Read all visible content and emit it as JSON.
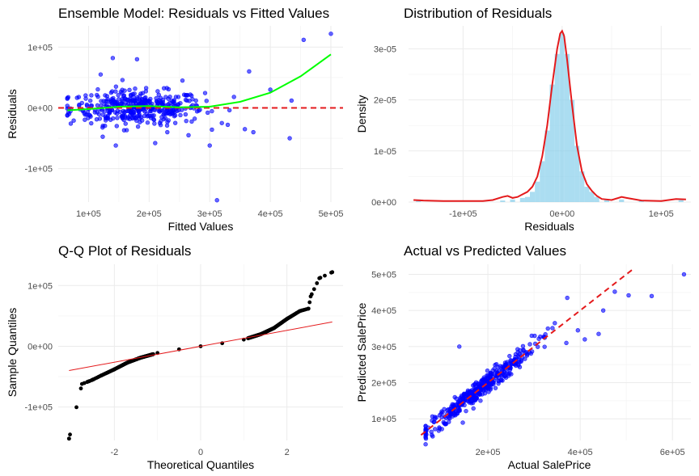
{
  "chart_data": [
    {
      "type": "scatter",
      "title": "Ensemble Model: Residuals vs Fitted Values",
      "xlabel": "Fitted Values",
      "ylabel": "Residuals",
      "xlim": [
        50000,
        520000
      ],
      "ylim": [
        -155000,
        135000
      ],
      "x_ticks": [
        {
          "value": 100000,
          "label": "1e+05"
        },
        {
          "value": 200000,
          "label": "2e+05"
        },
        {
          "value": 300000,
          "label": "3e+05"
        },
        {
          "value": 400000,
          "label": "4e+05"
        },
        {
          "value": 500000,
          "label": "5e+05"
        }
      ],
      "y_ticks": [
        {
          "value": -100000,
          "label": "-1e+05"
        },
        {
          "value": 0,
          "label": "0e+00"
        },
        {
          "value": 100000,
          "label": "1e+05"
        }
      ],
      "point_color": "#0000ff",
      "outliers": [
        {
          "x": 500000,
          "y": 122000
        },
        {
          "x": 455000,
          "y": 112000
        },
        {
          "x": 365000,
          "y": 60000
        },
        {
          "x": 140000,
          "y": 82000
        },
        {
          "x": 180000,
          "y": 80000
        },
        {
          "x": 120000,
          "y": 55000
        },
        {
          "x": 255000,
          "y": 45000
        },
        {
          "x": 400000,
          "y": 30000
        },
        {
          "x": 435000,
          "y": 12000
        },
        {
          "x": 312000,
          "y": -152000
        },
        {
          "x": 432000,
          "y": -50000
        },
        {
          "x": 300000,
          "y": -62000
        },
        {
          "x": 358000,
          "y": -35000
        },
        {
          "x": 145000,
          "y": -62000
        },
        {
          "x": 320000,
          "y": -25000
        },
        {
          "x": 372000,
          "y": -40000
        },
        {
          "x": 210000,
          "y": -58000
        },
        {
          "x": 265000,
          "y": -45000
        },
        {
          "x": 340000,
          "y": 18000
        },
        {
          "x": 230000,
          "y": -40000
        }
      ],
      "cluster": {
        "n": 420,
        "x_mean": 180000,
        "x_sd": 55000,
        "x_min": 65000,
        "x_max": 345000,
        "y_sd": 14000
      },
      "reference_line": {
        "y": 0,
        "color": "#e41a1c",
        "style": "dashed"
      },
      "smooth": {
        "color": "#00ff00",
        "points": [
          {
            "x": 65000,
            "y": -4000
          },
          {
            "x": 100000,
            "y": -2000
          },
          {
            "x": 150000,
            "y": 2000
          },
          {
            "x": 200000,
            "y": 3000
          },
          {
            "x": 250000,
            "y": 1000
          },
          {
            "x": 300000,
            "y": 2000
          },
          {
            "x": 350000,
            "y": 10000
          },
          {
            "x": 400000,
            "y": 25000
          },
          {
            "x": 450000,
            "y": 52000
          },
          {
            "x": 500000,
            "y": 88000
          }
        ]
      }
    },
    {
      "type": "area",
      "title": "Distribution of Residuals",
      "xlabel": "Residuals",
      "ylabel": "Density",
      "xlim": [
        -155000,
        130000
      ],
      "ylim": [
        0,
        3.45e-05
      ],
      "x_ticks": [
        {
          "value": -100000,
          "label": "-1e+05"
        },
        {
          "value": 0,
          "label": "0e+00"
        },
        {
          "value": 100000,
          "label": "1e+05"
        }
      ],
      "y_ticks": [
        {
          "value": 0,
          "label": "0e+00"
        },
        {
          "value": 1e-05,
          "label": "1e-05"
        },
        {
          "value": 2e-05,
          "label": "2e-05"
        },
        {
          "value": 3e-05,
          "label": "3e-05"
        }
      ],
      "histogram_color": "#87ceeb",
      "histogram": {
        "bin_width": 5000,
        "bins": [
          {
            "x": -145000,
            "d": 5e-07
          },
          {
            "x": -60000,
            "d": 3e-07
          },
          {
            "x": -50000,
            "d": 5e-07
          },
          {
            "x": -40000,
            "d": 8e-07
          },
          {
            "x": -35000,
            "d": 1e-06
          },
          {
            "x": -30000,
            "d": 2e-06
          },
          {
            "x": -25000,
            "d": 4e-06
          },
          {
            "x": -20000,
            "d": 8e-06
          },
          {
            "x": -15000,
            "d": 1.4e-05
          },
          {
            "x": -10000,
            "d": 2.3e-05
          },
          {
            "x": -5000,
            "d": 2.9e-05
          },
          {
            "x": 0,
            "d": 3.3e-05
          },
          {
            "x": 5000,
            "d": 2.9e-05
          },
          {
            "x": 10000,
            "d": 2e-05
          },
          {
            "x": 15000,
            "d": 1.1e-05
          },
          {
            "x": 20000,
            "d": 6e-06
          },
          {
            "x": 25000,
            "d": 3e-06
          },
          {
            "x": 30000,
            "d": 2e-06
          },
          {
            "x": 35000,
            "d": 1e-06
          },
          {
            "x": 45000,
            "d": 5e-07
          },
          {
            "x": 60000,
            "d": 5e-07
          },
          {
            "x": 80000,
            "d": 4e-07
          },
          {
            "x": 120000,
            "d": 4e-07
          }
        ]
      },
      "density_color": "#e41a1c",
      "density": [
        {
          "x": -150000,
          "y": 4e-07
        },
        {
          "x": -140000,
          "y": 3e-07
        },
        {
          "x": -120000,
          "y": 2e-07
        },
        {
          "x": -100000,
          "y": 2e-07
        },
        {
          "x": -80000,
          "y": 2e-07
        },
        {
          "x": -70000,
          "y": 4e-07
        },
        {
          "x": -60000,
          "y": 1e-06
        },
        {
          "x": -55000,
          "y": 1.2e-06
        },
        {
          "x": -50000,
          "y": 8e-07
        },
        {
          "x": -45000,
          "y": 1e-06
        },
        {
          "x": -40000,
          "y": 1.5e-06
        },
        {
          "x": -35000,
          "y": 2e-06
        },
        {
          "x": -30000,
          "y": 3e-06
        },
        {
          "x": -25000,
          "y": 5e-06
        },
        {
          "x": -20000,
          "y": 9e-06
        },
        {
          "x": -15000,
          "y": 1.5e-05
        },
        {
          "x": -10000,
          "y": 2.3e-05
        },
        {
          "x": -5000,
          "y": 3e-05
        },
        {
          "x": -2000,
          "y": 3.3e-05
        },
        {
          "x": 0,
          "y": 3.35e-05
        },
        {
          "x": 2000,
          "y": 3.25e-05
        },
        {
          "x": 5000,
          "y": 2.8e-05
        },
        {
          "x": 10000,
          "y": 1.9e-05
        },
        {
          "x": 15000,
          "y": 1.1e-05
        },
        {
          "x": 20000,
          "y": 6e-06
        },
        {
          "x": 25000,
          "y": 3.5e-06
        },
        {
          "x": 30000,
          "y": 2.2e-06
        },
        {
          "x": 35000,
          "y": 1.2e-06
        },
        {
          "x": 40000,
          "y": 6e-07
        },
        {
          "x": 50000,
          "y": 4e-07
        },
        {
          "x": 60000,
          "y": 1e-06
        },
        {
          "x": 65000,
          "y": 8e-07
        },
        {
          "x": 80000,
          "y": 3e-07
        },
        {
          "x": 100000,
          "y": 2e-07
        },
        {
          "x": 115000,
          "y": 6e-07
        },
        {
          "x": 125000,
          "y": 5e-07
        }
      ]
    },
    {
      "type": "scatter",
      "title": "Q-Q Plot of Residuals",
      "xlabel": "Theoretical Quantiles",
      "ylabel": "Sample Quantiles",
      "xlim": [
        -3.3,
        3.3
      ],
      "ylim": [
        -155000,
        135000
      ],
      "x_ticks": [
        {
          "value": -2,
          "label": "-2"
        },
        {
          "value": 0,
          "label": "0"
        },
        {
          "value": 2,
          "label": "2"
        }
      ],
      "y_ticks": [
        {
          "value": -100000,
          "label": "-1e+05"
        },
        {
          "value": 0,
          "label": "0e+00"
        },
        {
          "value": 100000,
          "label": "1e+05"
        }
      ],
      "point_color": "#000000",
      "reference_line": {
        "color": "#e41a1c",
        "from": {
          "x": -3.05,
          "y": -40000
        },
        "to": {
          "x": 3.05,
          "y": 40000
        }
      },
      "quantile_curve": [
        {
          "x": -3.05,
          "y": -152000
        },
        {
          "x": -2.75,
          "y": -62000
        },
        {
          "x": -2.6,
          "y": -58000
        },
        {
          "x": -2.5,
          "y": -55000
        },
        {
          "x": -2.3,
          "y": -48000
        },
        {
          "x": -2.0,
          "y": -38000
        },
        {
          "x": -1.7,
          "y": -27000
        },
        {
          "x": -1.4,
          "y": -19000
        },
        {
          "x": -1.0,
          "y": -11000
        },
        {
          "x": -0.5,
          "y": -5000
        },
        {
          "x": 0.0,
          "y": 0
        },
        {
          "x": 0.5,
          "y": 5000
        },
        {
          "x": 1.0,
          "y": 11000
        },
        {
          "x": 1.4,
          "y": 20000
        },
        {
          "x": 1.7,
          "y": 30000
        },
        {
          "x": 2.0,
          "y": 45000
        },
        {
          "x": 2.3,
          "y": 58000
        },
        {
          "x": 2.5,
          "y": 62000
        },
        {
          "x": 2.55,
          "y": 82000
        },
        {
          "x": 2.75,
          "y": 112000
        },
        {
          "x": 3.05,
          "y": 122000
        }
      ],
      "n": 300
    },
    {
      "type": "scatter",
      "title": "Actual vs Predicted Values",
      "xlabel": "Actual SalePrice",
      "ylabel": "Predicted SalePrice",
      "xlim": [
        28000,
        640000
      ],
      "ylim": [
        40000,
        528000
      ],
      "x_ticks": [
        {
          "value": 200000,
          "label": "2e+05"
        },
        {
          "value": 400000,
          "label": "4e+05"
        },
        {
          "value": 600000,
          "label": "6e+05"
        }
      ],
      "y_ticks": [
        {
          "value": 100000,
          "label": "1e+05"
        },
        {
          "value": 200000,
          "label": "2e+05"
        },
        {
          "value": 300000,
          "label": "3e+05"
        },
        {
          "value": 400000,
          "label": "4e+05"
        },
        {
          "value": 500000,
          "label": "5e+05"
        }
      ],
      "point_color": "#0000ff",
      "reference_line": {
        "color": "#e41a1c",
        "style": "dashed",
        "from": {
          "x": 55000,
          "y": 55000
        },
        "to": {
          "x": 515000,
          "y": 515000
        }
      },
      "outliers": [
        {
          "x": 625000,
          "y": 500000
        },
        {
          "x": 555000,
          "y": 440000
        },
        {
          "x": 505000,
          "y": 442000
        },
        {
          "x": 475000,
          "y": 452000
        },
        {
          "x": 395000,
          "y": 345000
        },
        {
          "x": 440000,
          "y": 335000
        },
        {
          "x": 345000,
          "y": 365000
        },
        {
          "x": 410000,
          "y": 320000
        },
        {
          "x": 138000,
          "y": 300000
        },
        {
          "x": 372000,
          "y": 435000
        },
        {
          "x": 450000,
          "y": 400000
        },
        {
          "x": 370000,
          "y": 310000
        },
        {
          "x": 295000,
          "y": 330000
        },
        {
          "x": 330000,
          "y": 350000
        }
      ],
      "cluster": {
        "n": 420,
        "x_mean": 180000,
        "x_sd": 60000,
        "x_min": 65000,
        "x_max": 340000,
        "y_sd": 14000
      }
    }
  ]
}
